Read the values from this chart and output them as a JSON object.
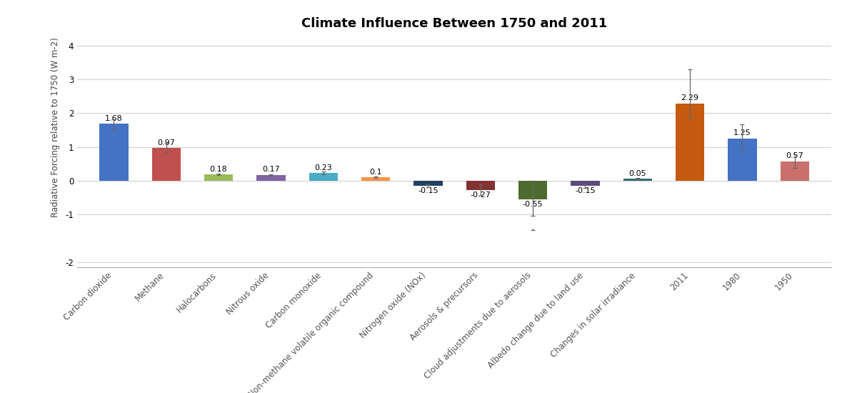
{
  "title": "Climate Influence Between 1750 and 2011",
  "ylabel": "Radiative Forcing relative to 1750 (W m-2)",
  "categories": [
    "Carbon dioxide",
    "Methane",
    "Halocarbons",
    "Nitrous oxide",
    "Carbon monoxide",
    "Non-methane volatile organic compound",
    "Nitrogen oxide (NOx)",
    "Aerosols & precursors",
    "Cloud adjustments due to aerosols",
    "Albedo change due to land use",
    "Changes in solar irradiance",
    "2011",
    "1980",
    "1950"
  ],
  "values": [
    1.68,
    0.97,
    0.18,
    0.17,
    0.23,
    0.1,
    -0.15,
    -0.27,
    -0.55,
    -0.15,
    0.05,
    2.29,
    1.25,
    0.57
  ],
  "colors": [
    "#4472C4",
    "#C0504D",
    "#9BBB59",
    "#8064A2",
    "#4BACC6",
    "#F79646",
    "#243F60",
    "#833232",
    "#4D6B2E",
    "#5C4A7C",
    "#336E6E",
    "#C55A11",
    "#4472C4",
    "#C9706A"
  ],
  "error_low": [
    0.14,
    0.14,
    0.02,
    0.02,
    0.05,
    0.02,
    0.05,
    0.15,
    0.5,
    0.07,
    0.02,
    0.43,
    0.35,
    0.2
  ],
  "error_high": [
    0.14,
    0.14,
    0.02,
    0.02,
    0.05,
    0.02,
    0.05,
    0.15,
    0.55,
    0.07,
    0.02,
    1.0,
    0.42,
    0.2
  ],
  "upper_ylim": [
    -1.15,
    4.3
  ],
  "lower_ylim": [
    -2.15,
    -1.0
  ],
  "upper_yticks": [
    -1,
    0,
    1,
    2,
    3,
    4
  ],
  "lower_yticks": [
    -2
  ],
  "background_color": "#FFFFFF",
  "grid_color": "#CCCCCC",
  "bar_width": 0.55,
  "title_fontsize": 13,
  "label_fontsize": 8.5,
  "tick_fontsize": 8.5,
  "value_fontsize": 8
}
